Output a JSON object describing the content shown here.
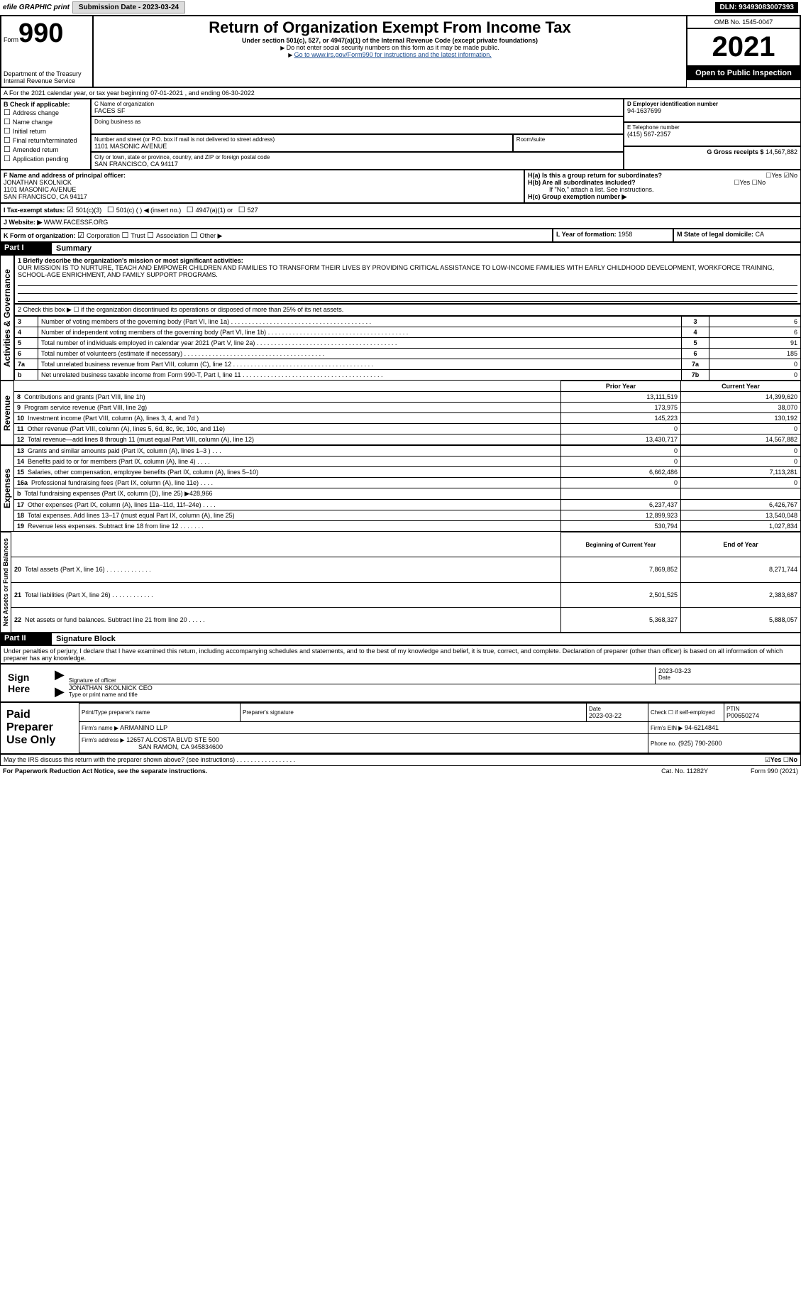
{
  "header": {
    "efile": "efile GRAPHIC print",
    "submission": "Submission Date - 2023-03-24",
    "dln": "DLN: 93493083007393"
  },
  "form_id": {
    "form_word": "Form",
    "num": "990",
    "dept": "Department of the Treasury",
    "irs": "Internal Revenue Service"
  },
  "title_block": {
    "title": "Return of Organization Exempt From Income Tax",
    "sub1": "Under section 501(c), 527, or 4947(a)(1) of the Internal Revenue Code (except private foundations)",
    "sub2": "Do not enter social security numbers on this form as it may be made public.",
    "sub3": "Go to www.irs.gov/Form990 for instructions and the latest information."
  },
  "right_block": {
    "omb": "OMB No. 1545-0047",
    "year": "2021",
    "open": "Open to Public Inspection"
  },
  "period": "A For the 2021 calendar year, or tax year beginning 07-01-2021    , and ending 06-30-2022",
  "boxB": {
    "label": "B Check if applicable:",
    "items": [
      "Address change",
      "Name change",
      "Initial return",
      "Final return/terminated",
      "Amended return",
      "Application pending"
    ]
  },
  "boxC": {
    "name_label": "C Name of organization",
    "name": "FACES SF",
    "dba_label": "Doing business as",
    "street_label": "Number and street (or P.O. box if mail is not delivered to street address)",
    "room_label": "Room/suite",
    "street": "1101 MASONIC AVENUE",
    "city_label": "City or town, state or province, country, and ZIP or foreign postal code",
    "city": "SAN FRANCISCO, CA  94117"
  },
  "boxD": {
    "label": "D Employer identification number",
    "val": "94-1637699"
  },
  "boxE": {
    "label": "E Telephone number",
    "val": "(415) 567-2357"
  },
  "boxG": {
    "label": "G Gross receipts $",
    "val": "14,567,882"
  },
  "boxF": {
    "label": "F  Name and address of principal officer:",
    "name": "JONATHAN SKOLNICK",
    "addr1": "1101 MASONIC AVENUE",
    "addr2": "SAN FRANCISCO, CA  94117"
  },
  "boxH": {
    "a": "H(a)  Is this a group return for subordinates?",
    "b": "H(b)  Are all subordinates included?",
    "note": "If \"No,\" attach a list. See instructions.",
    "c": "H(c)  Group exemption number ▶"
  },
  "boxI": {
    "label": "I    Tax-exempt status:",
    "opts": [
      "501(c)(3)",
      "501(c) (  ) ◀ (insert no.)",
      "4947(a)(1) or",
      "527"
    ]
  },
  "boxJ": {
    "label": "J    Website: ▶",
    "val": "WWW.FACESSF.ORG"
  },
  "boxK": "K Form of organization:",
  "k_opts": [
    "Corporation",
    "Trust",
    "Association",
    "Other ▶"
  ],
  "boxL": {
    "label": "L Year of formation:",
    "val": "1958"
  },
  "boxM": {
    "label": "M State of legal domicile:",
    "val": "CA"
  },
  "part1": {
    "label": "Part I",
    "title": "Summary"
  },
  "mission": {
    "line1": "1 Briefly describe the organization's mission or most significant activities:",
    "text": "OUR MISSION IS TO NURTURE, TEACH AND EMPOWER CHILDREN AND FAMILIES TO TRANSFORM THEIR LIVES BY PROVIDING CRITICAL ASSISTANCE TO LOW-INCOME FAMILIES WITH EARLY CHILDHOOD DEVELOPMENT, WORKFORCE TRAINING, SCHOOL-AGE ENRICHMENT, AND FAMILY SUPPORT PROGRAMS."
  },
  "checkbox2": "2    Check this box ▶ ☐  if the organization discontinued its operations or disposed of more than 25% of its net assets.",
  "gov_rows": [
    {
      "n": "3",
      "t": "Number of voting members of the governing body (Part VI, line 1a)",
      "b": "3",
      "v": "6"
    },
    {
      "n": "4",
      "t": "Number of independent voting members of the governing body (Part VI, line 1b)",
      "b": "4",
      "v": "6"
    },
    {
      "n": "5",
      "t": "Total number of individuals employed in calendar year 2021 (Part V, line 2a)",
      "b": "5",
      "v": "91"
    },
    {
      "n": "6",
      "t": "Total number of volunteers (estimate if necessary)",
      "b": "6",
      "v": "185"
    },
    {
      "n": "7a",
      "t": "Total unrelated business revenue from Part VIII, column (C), line 12",
      "b": "7a",
      "v": "0"
    },
    {
      "n": "b",
      "t": "Net unrelated business taxable income from Form 990-T, Part I, line 11",
      "b": "7b",
      "v": "0"
    }
  ],
  "two_col_hdr": {
    "prior": "Prior Year",
    "curr": "Current Year"
  },
  "revenue": [
    {
      "n": "8",
      "t": "Contributions and grants (Part VIII, line 1h)",
      "p": "13,111,519",
      "c": "14,399,620"
    },
    {
      "n": "9",
      "t": "Program service revenue (Part VIII, line 2g)",
      "p": "173,975",
      "c": "38,070"
    },
    {
      "n": "10",
      "t": "Investment income (Part VIII, column (A), lines 3, 4, and 7d )",
      "p": "145,223",
      "c": "130,192"
    },
    {
      "n": "11",
      "t": "Other revenue (Part VIII, column (A), lines 5, 6d, 8c, 9c, 10c, and 11e)",
      "p": "0",
      "c": "0"
    },
    {
      "n": "12",
      "t": "Total revenue—add lines 8 through 11 (must equal Part VIII, column (A), line 12)",
      "p": "13,430,717",
      "c": "14,567,882"
    }
  ],
  "expenses": [
    {
      "n": "13",
      "t": "Grants and similar amounts paid (Part IX, column (A), lines 1–3 )  .   .   .",
      "p": "0",
      "c": "0"
    },
    {
      "n": "14",
      "t": "Benefits paid to or for members (Part IX, column (A), line 4)  .   .   .   .",
      "p": "0",
      "c": "0"
    },
    {
      "n": "15",
      "t": "Salaries, other compensation, employee benefits (Part IX, column (A), lines 5–10)",
      "p": "6,662,486",
      "c": "7,113,281"
    },
    {
      "n": "16a",
      "t": "Professional fundraising fees (Part IX, column (A), line 11e)  .   .   .   .",
      "p": "0",
      "c": "0"
    },
    {
      "n": "b",
      "t": "Total fundraising expenses (Part IX, column (D), line 25) ▶428,966",
      "p": "",
      "c": ""
    },
    {
      "n": "17",
      "t": "Other expenses (Part IX, column (A), lines 11a–11d, 11f–24e)   .   .   .   .",
      "p": "6,237,437",
      "c": "6,426,767"
    },
    {
      "n": "18",
      "t": "Total expenses. Add lines 13–17 (must equal Part IX, column (A), line 25)",
      "p": "12,899,923",
      "c": "13,540,048"
    },
    {
      "n": "19",
      "t": "Revenue less expenses. Subtract line 18 from line 12 .   .   .   .   .   .   .",
      "p": "530,794",
      "c": "1,027,834"
    }
  ],
  "net_hdr": {
    "b": "Beginning of Current Year",
    "e": "End of Year"
  },
  "net": [
    {
      "n": "20",
      "t": "Total assets (Part X, line 16)  .   .   .   .   .   .   .   .   .   .   .   .   .",
      "p": "7,869,852",
      "c": "8,271,744"
    },
    {
      "n": "21",
      "t": "Total liabilities (Part X, line 26)  .   .   .   .   .   .   .   .   .   .   .   .",
      "p": "2,501,525",
      "c": "2,383,687"
    },
    {
      "n": "22",
      "t": "Net assets or fund balances. Subtract line 21 from line 20  .   .   .   .   .",
      "p": "5,368,327",
      "c": "5,888,057"
    }
  ],
  "part2": {
    "label": "Part II",
    "title": "Signature Block"
  },
  "perjury": "Under penalties of perjury, I declare that I have examined this return, including accompanying schedules and statements, and to the best of my knowledge and belief, it is true, correct, and complete. Declaration of preparer (other than officer) is based on all information of which preparer has any knowledge.",
  "sign": {
    "label": "Sign Here",
    "sig_lbl": "Signature of officer",
    "date": "2023-03-23",
    "date_lbl": "Date",
    "name": "JONATHAN SKOLNICK  CEO",
    "name_lbl": "Type or print name and title"
  },
  "paid": {
    "label": "Paid Preparer Use Only",
    "h1": "Print/Type preparer's name",
    "h2": "Preparer's signature",
    "h3": "Date",
    "h3v": "2023-03-22",
    "h4": "Check ☐ if self-employed",
    "h5": "PTIN",
    "h5v": "P00650274",
    "firm_lbl": "Firm's name    ▶",
    "firm": "ARMANINO LLP",
    "ein_lbl": "Firm's EIN ▶",
    "ein": "94-6214841",
    "addr_lbl": "Firm's address ▶",
    "addr1": "12657 ALCOSTA BLVD STE 500",
    "addr2": "SAN RAMON, CA  945834600",
    "phone_lbl": "Phone no.",
    "phone": "(925) 790-2600"
  },
  "discuss": "May the IRS discuss this return with the preparer shown above? (see instructions)  .   .   .   .   .   .   .   .   .   .   .   .   .   .   .   .   .",
  "footer": {
    "l": "For Paperwork Reduction Act Notice, see the separate instructions.",
    "m": "Cat. No. 11282Y",
    "r": "Form 990 (2021)"
  },
  "vlabels": {
    "a": "Activities & Governance",
    "b": "Revenue",
    "c": "Expenses",
    "d": "Net Assets or Fund Balances"
  }
}
